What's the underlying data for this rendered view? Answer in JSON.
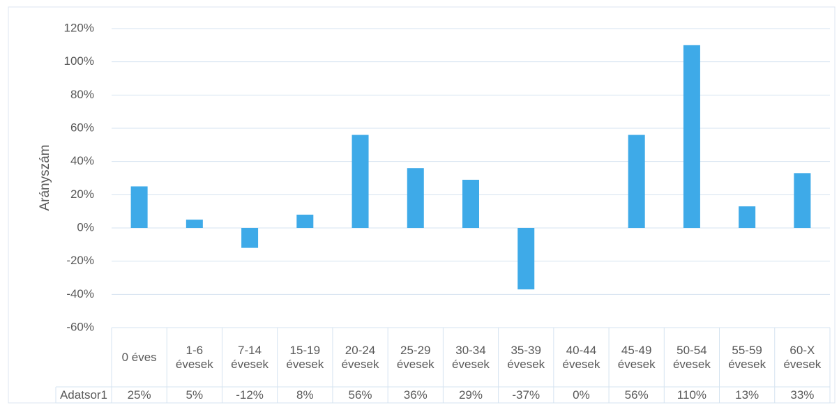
{
  "chart_data": {
    "type": "bar",
    "y_label": "Arányszám",
    "categories": [
      "0 éves",
      "1-6 évesek",
      "7-14 évesek",
      "15-19 évesek",
      "20-24 évesek",
      "25-29 évesek",
      "30-34 évesek",
      "35-39 évesek",
      "40-44 évesek",
      "45-49 évesek",
      "50-54 évesek",
      "55-59 évesek",
      "60-X évesek"
    ],
    "series": [
      {
        "name": "Adatsor1",
        "color": "#3eaae8",
        "values": [
          25,
          5,
          -12,
          8,
          56,
          36,
          29,
          -37,
          0,
          56,
          110,
          13,
          33
        ],
        "value_labels": [
          "25%",
          "5%",
          "-12%",
          "8%",
          "56%",
          "36%",
          "29%",
          "-37%",
          "0%",
          "56%",
          "110%",
          "13%",
          "33%"
        ]
      }
    ],
    "ylim": [
      -60,
      120
    ],
    "yticks": [
      {
        "value": -60,
        "label": "-60%"
      },
      {
        "value": -40,
        "label": "-40%"
      },
      {
        "value": -20,
        "label": "-20%"
      },
      {
        "value": 0,
        "label": "0%"
      },
      {
        "value": 20,
        "label": "20%"
      },
      {
        "value": 40,
        "label": "40%"
      },
      {
        "value": 60,
        "label": "60%"
      },
      {
        "value": 80,
        "label": "80%"
      },
      {
        "value": 100,
        "label": "100%"
      },
      {
        "value": 120,
        "label": "120%"
      }
    ],
    "grid": true,
    "data_table": true
  }
}
